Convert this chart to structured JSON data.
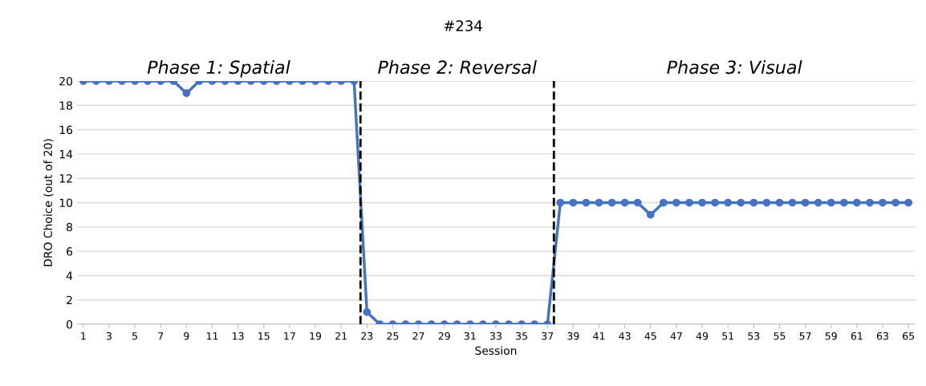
{
  "chart_data": {
    "type": "line",
    "title": "#234",
    "xlabel": "Session",
    "ylabel": "DRO Choice (out of 20)",
    "x": [
      1,
      2,
      3,
      4,
      5,
      6,
      7,
      8,
      9,
      10,
      11,
      12,
      13,
      14,
      15,
      16,
      17,
      18,
      19,
      20,
      21,
      22,
      23,
      24,
      25,
      26,
      27,
      28,
      29,
      30,
      31,
      32,
      33,
      34,
      35,
      36,
      37,
      38,
      39,
      40,
      41,
      42,
      43,
      44,
      45,
      46,
      47,
      48,
      49,
      50,
      51,
      52,
      53,
      54,
      55,
      56,
      57,
      58,
      59,
      60,
      61,
      62,
      63,
      64,
      65
    ],
    "series": [
      {
        "color": "#4472c4",
        "values": [
          20,
          20,
          20,
          20,
          20,
          20,
          20,
          20,
          19,
          20,
          20,
          20,
          20,
          20,
          20,
          20,
          20,
          20,
          20,
          20,
          20,
          20,
          1,
          0,
          0,
          0,
          0,
          0,
          0,
          0,
          0,
          0,
          0,
          0,
          0,
          0,
          0,
          10,
          10,
          10,
          10,
          10,
          10,
          10,
          9,
          10,
          10,
          10,
          10,
          10,
          10,
          10,
          10,
          10,
          10,
          10,
          10,
          10,
          10,
          10,
          10,
          10,
          10,
          10,
          10
        ]
      }
    ],
    "xlim": [
      0.5,
      65.5
    ],
    "xticks": [
      1,
      3,
      5,
      7,
      9,
      11,
      13,
      15,
      17,
      19,
      21,
      23,
      25,
      27,
      29,
      31,
      33,
      35,
      37,
      39,
      41,
      43,
      45,
      47,
      49,
      51,
      53,
      55,
      57,
      59,
      61,
      63,
      65
    ],
    "ylim": [
      0,
      20
    ],
    "yticks": [
      0,
      2,
      4,
      6,
      8,
      10,
      12,
      14,
      16,
      18,
      20
    ],
    "grid": "y",
    "marker": "circle",
    "line_style": "solid",
    "ref_lines": [
      {
        "axis": "x",
        "value": 22.5,
        "color": "#000000",
        "line_style": "dashed"
      },
      {
        "axis": "x",
        "value": 37.5,
        "color": "#000000",
        "line_style": "dashed"
      }
    ],
    "annotations": [
      "Phase 1: Spatial",
      "Phase 2: Reversal",
      "Phase 3: Visual"
    ]
  }
}
